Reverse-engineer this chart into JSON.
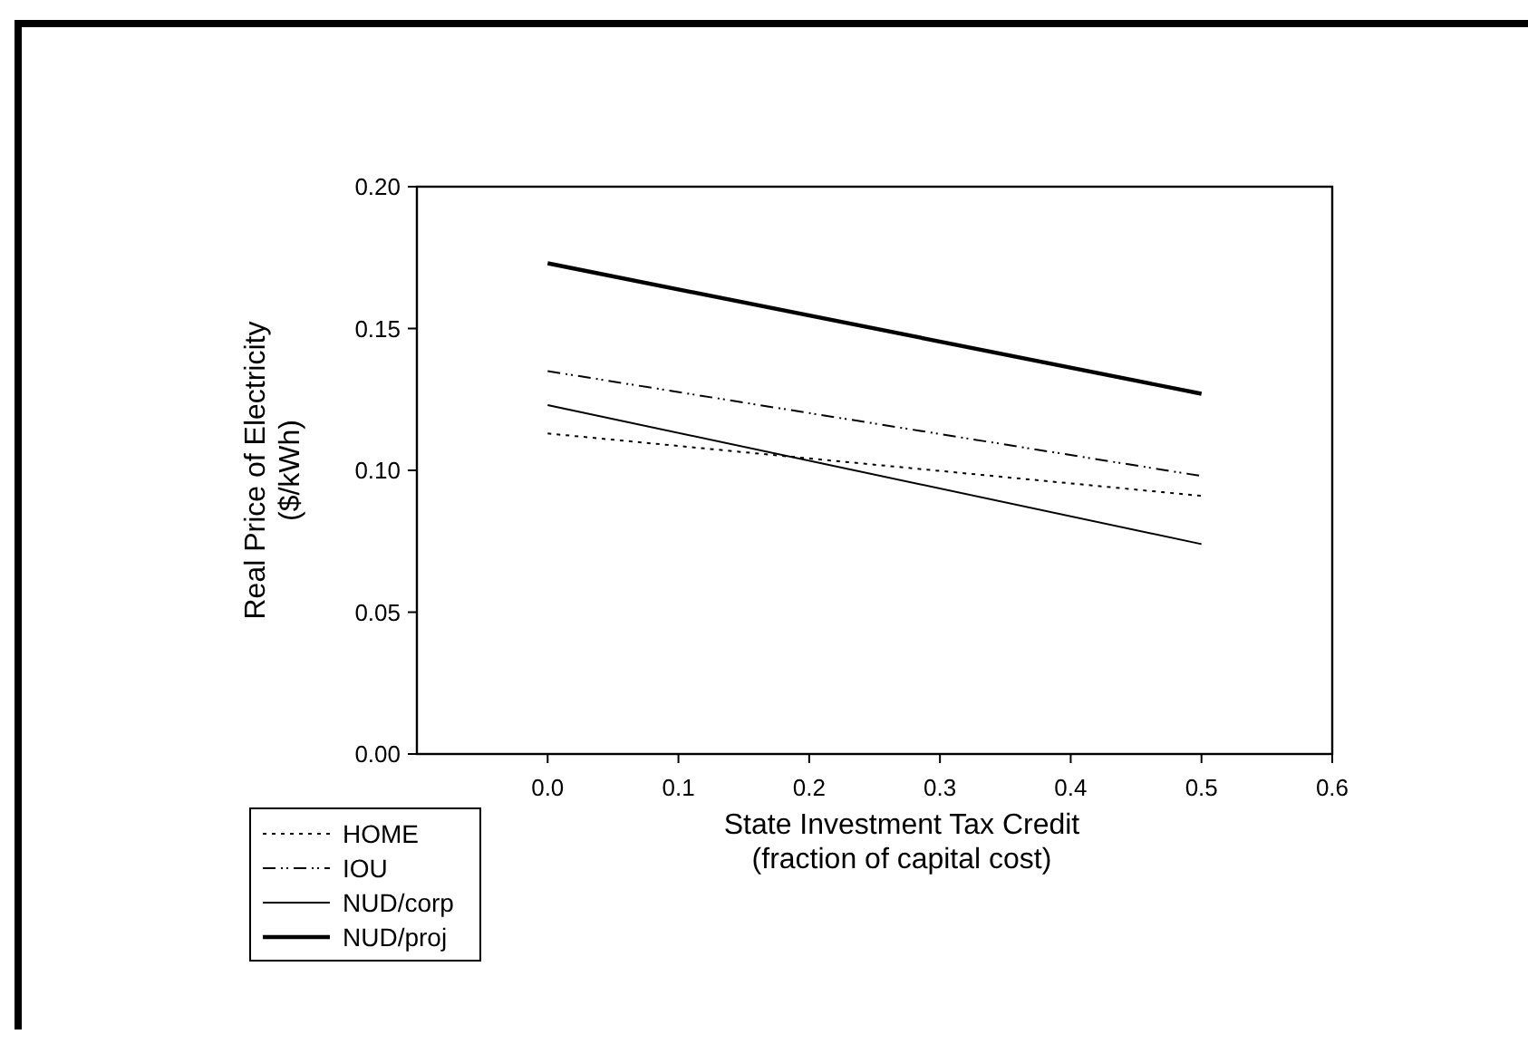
{
  "chart_data": {
    "type": "line",
    "xlabel": "State Investment Tax Credit\n(fraction of capital cost)",
    "ylabel": "Real Price of Electricity\n($/kWh)",
    "x": [
      0,
      0.5
    ],
    "series": [
      {
        "name": "HOME",
        "color": "#000000",
        "line_style": "dotted",
        "values": [
          0.113,
          0.091
        ]
      },
      {
        "name": "IOU",
        "color": "#000000",
        "line_style": "dashed",
        "values": [
          0.135,
          0.098
        ]
      },
      {
        "name": "NUD/corp",
        "color": "#000000",
        "line_style": "solid",
        "values": [
          0.123,
          0.074
        ]
      },
      {
        "name": "NUD/proj",
        "color": "#000000",
        "line_style": "solid",
        "values": [
          0.173,
          0.127
        ]
      }
    ],
    "xlim": [
      -0.1,
      0.6
    ],
    "xticks": [
      {
        "value": 0,
        "label": "0.0"
      },
      {
        "value": 0.1,
        "label": "0.1"
      },
      {
        "value": 0.2,
        "label": "0.2"
      },
      {
        "value": 0.3,
        "label": "0.3"
      },
      {
        "value": 0.4,
        "label": "0.4"
      },
      {
        "value": 0.5,
        "label": "0.5"
      },
      {
        "value": 0.6,
        "label": "0.6"
      }
    ],
    "ylim": [
      0,
      0.2
    ],
    "yticks": [
      {
        "value": 0,
        "label": "0.00"
      },
      {
        "value": 0.05,
        "label": "0.05"
      },
      {
        "value": 0.1,
        "label": "0.10"
      },
      {
        "value": 0.15,
        "label": "0.15"
      },
      {
        "value": 0.2,
        "label": "0.20"
      }
    ],
    "grid": false,
    "legend": "bottom left",
    "marker": "none"
  }
}
